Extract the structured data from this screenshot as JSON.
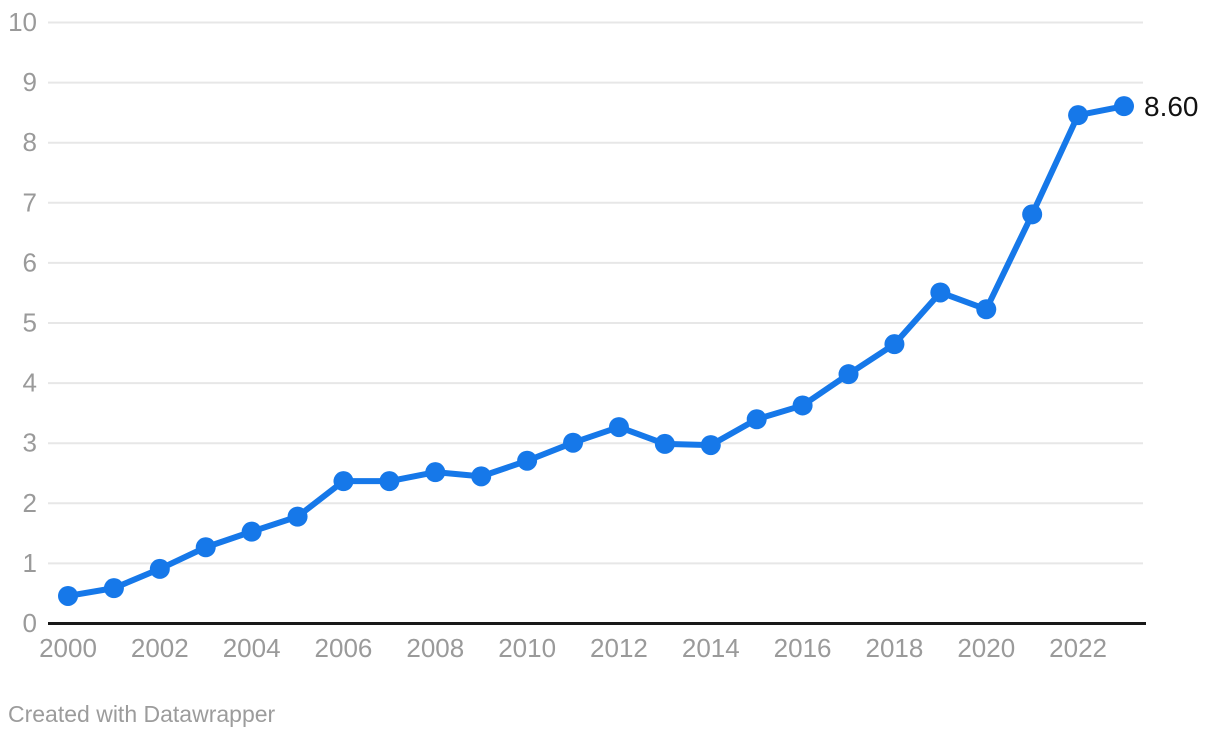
{
  "chart_data": {
    "type": "line",
    "title": "",
    "xlabel": "",
    "ylabel": "",
    "x": [
      2000,
      2001,
      2002,
      2003,
      2004,
      2005,
      2006,
      2007,
      2008,
      2009,
      2010,
      2011,
      2012,
      2013,
      2014,
      2015,
      2016,
      2017,
      2018,
      2019,
      2020,
      2021,
      2022,
      2023
    ],
    "series": [
      {
        "name": "value",
        "values": [
          0.45,
          0.58,
          0.9,
          1.26,
          1.52,
          1.77,
          2.36,
          2.36,
          2.51,
          2.44,
          2.7,
          3.0,
          3.26,
          2.98,
          2.96,
          3.39,
          3.62,
          4.14,
          4.64,
          5.5,
          5.22,
          6.8,
          8.45,
          8.6
        ]
      }
    ],
    "ylim": [
      0,
      10
    ],
    "yticks": [
      0,
      1,
      2,
      3,
      4,
      5,
      6,
      7,
      8,
      9,
      10
    ],
    "xticks": [
      2000,
      2002,
      2004,
      2006,
      2008,
      2010,
      2012,
      2014,
      2016,
      2018,
      2020,
      2022
    ],
    "grid": "horizontal",
    "legend": "none",
    "end_label": "8.60",
    "colors": {
      "line": "#1678e9",
      "point": "#1678e9",
      "gridline": "#e7e7e7",
      "axis": "#181818",
      "tick_label": "#9a9a9a",
      "end_label": "#121212",
      "background": "#ffffff"
    }
  },
  "footer": {
    "attribution": "Created with Datawrapper"
  }
}
